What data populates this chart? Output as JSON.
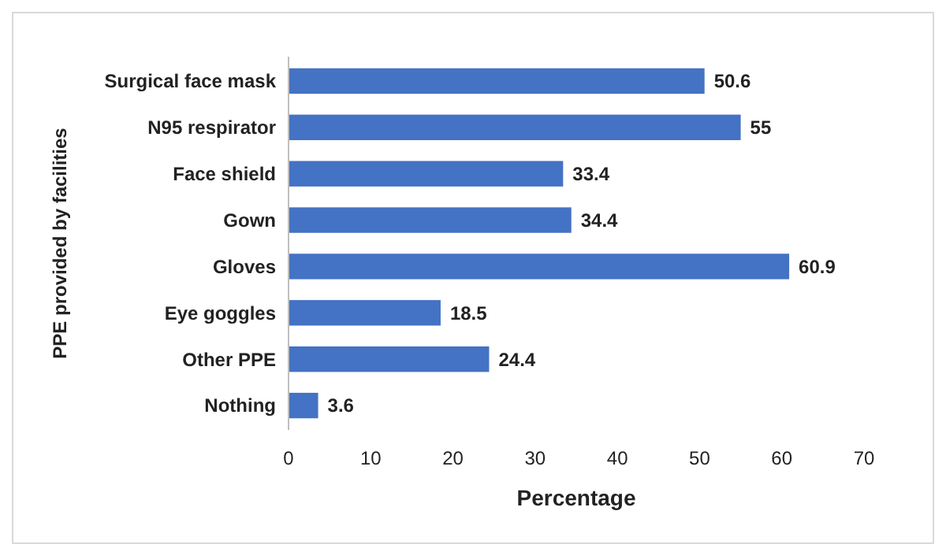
{
  "chart_data": {
    "type": "bar",
    "orientation": "horizontal",
    "xlabel": "Percentage",
    "ylabel": "PPE provided by facilities",
    "categories": [
      "Surgical face mask",
      "N95 respirator",
      "Face shield",
      "Gown",
      "Gloves",
      "Eye goggles",
      "Other PPE",
      "Nothing"
    ],
    "values": [
      50.6,
      55,
      33.4,
      34.4,
      60.9,
      18.5,
      24.4,
      3.6
    ],
    "color": "#4472c4",
    "xlim": [
      0,
      70
    ],
    "xticks": [
      0,
      10,
      20,
      30,
      40,
      50,
      60,
      70
    ],
    "grid": false,
    "data_labels": true
  }
}
